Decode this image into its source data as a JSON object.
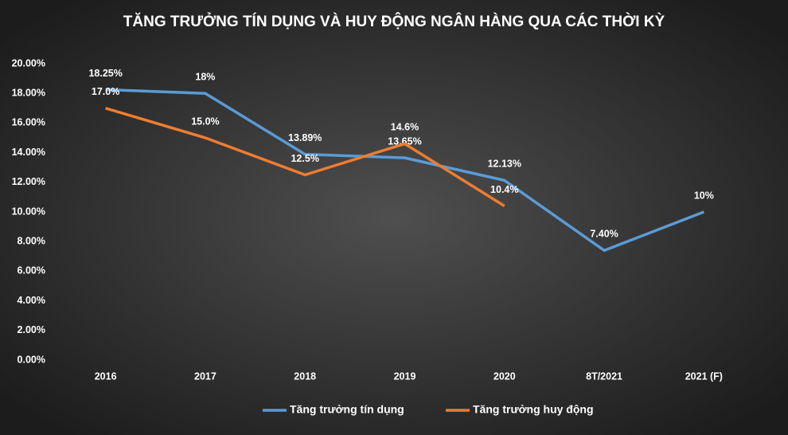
{
  "chart_data": {
    "type": "line",
    "title": "TĂNG TRƯỞNG TÍN DỤNG VÀ HUY ĐỘNG NGÂN HÀNG QUA CÁC THỜI KỲ",
    "categories": [
      "2016",
      "2017",
      "2018",
      "2019",
      "2020",
      "8T/2021",
      "2021 (F)"
    ],
    "series": [
      {
        "name": "Tăng trưởng tín dụng",
        "color": "#5b9bd5",
        "values": [
          18.25,
          18,
          13.89,
          13.65,
          12.13,
          7.4,
          10
        ],
        "value_labels": [
          "18.25%",
          "18%",
          "13.89%",
          "13.65%",
          "12.13%",
          "7.40%",
          "10%"
        ]
      },
      {
        "name": "Tăng trưởng huy động",
        "color": "#ed7d31",
        "values": [
          17.0,
          15.0,
          12.5,
          14.6,
          10.4,
          null,
          null
        ],
        "value_labels": [
          "17.0%",
          "15.0%",
          "12.5%",
          "14.6%",
          "10.4%",
          null,
          null
        ]
      }
    ],
    "ylim": [
      0,
      20
    ],
    "yticks": [
      {
        "value": 0,
        "label": "0.00%"
      },
      {
        "value": 2,
        "label": "2.00%"
      },
      {
        "value": 4,
        "label": "4.00%"
      },
      {
        "value": 6,
        "label": "6.00%"
      },
      {
        "value": 8,
        "label": "8.00%"
      },
      {
        "value": 10,
        "label": "10.00%"
      },
      {
        "value": 12,
        "label": "12.00%"
      },
      {
        "value": 14,
        "label": "14.00%"
      },
      {
        "value": 16,
        "label": "16.00%"
      },
      {
        "value": 18,
        "label": "18.00%"
      },
      {
        "value": 20,
        "label": "20.00%"
      }
    ],
    "grid": false
  }
}
